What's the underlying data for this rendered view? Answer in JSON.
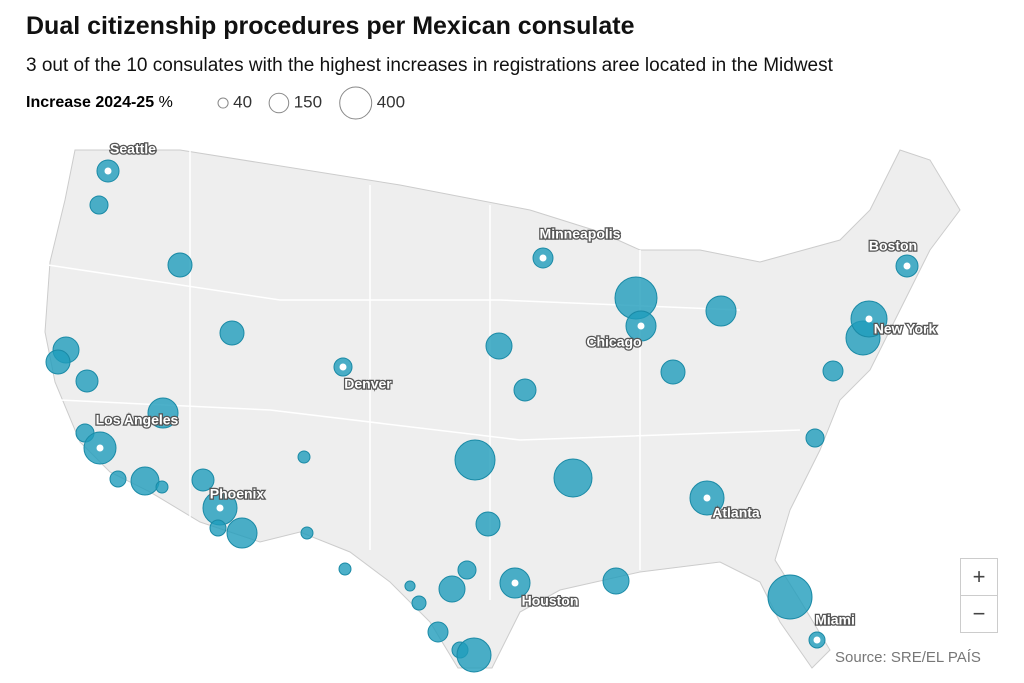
{
  "header": {
    "title": "Dual citizenship procedures per Mexican consulate",
    "subtitle": "3 out of the 10 consulates with the highest increases in registrations aree located in the Midwest"
  },
  "legend": {
    "title": "Increase 2024-25",
    "unit": "%",
    "sizes": [
      40,
      150,
      400
    ]
  },
  "consulates": [
    {
      "name": "Seattle",
      "value": 190
    },
    {
      "value": 127
    },
    {
      "value": 225
    },
    {
      "value": 225
    },
    {
      "value": 264
    },
    {
      "value": 225
    },
    {
      "value": 189
    },
    {
      "value": 352
    },
    {
      "value": 127
    },
    {
      "name": "Los Angeles",
      "value": 400
    },
    {
      "value": 100
    },
    {
      "value": 306
    },
    {
      "value": 56
    },
    {
      "value": 189
    },
    {
      "name": "Phoenix",
      "value": 452
    },
    {
      "value": 100
    },
    {
      "value": 352
    },
    {
      "value": 56
    },
    {
      "value": 56
    },
    {
      "name": "Denver",
      "value": 127
    },
    {
      "value": 56
    },
    {
      "value": 40
    },
    {
      "value": 77
    },
    {
      "value": 264
    },
    {
      "value": 127
    },
    {
      "value": 156
    },
    {
      "value": 625
    },
    {
      "value": 225
    },
    {
      "name": "Houston",
      "value": 352
    },
    {
      "value": 100
    },
    {
      "value": 452
    },
    {
      "name": "Minneapolis",
      "value": 156
    },
    {
      "value": 264
    },
    {
      "value": 189
    },
    {
      "value": 564
    },
    {
      "value": 264
    },
    {
      "value": 689
    },
    {
      "name": "Chicago",
      "value": 352
    },
    {
      "value": 225
    },
    {
      "value": 352
    },
    {
      "name": "Atlanta",
      "value": 452
    },
    {
      "value": 127
    },
    {
      "value": 156
    },
    {
      "value": 452
    },
    {
      "name": "New York",
      "value": 506
    },
    {
      "name": "Boston",
      "value": 189
    },
    {
      "value": 756
    },
    {
      "name": "Miami",
      "value": 100
    }
  ],
  "controls": {
    "zoom_in": "+",
    "zoom_out": "−"
  },
  "footer": {
    "source": "Source: SRE/EL PAÍS"
  }
}
